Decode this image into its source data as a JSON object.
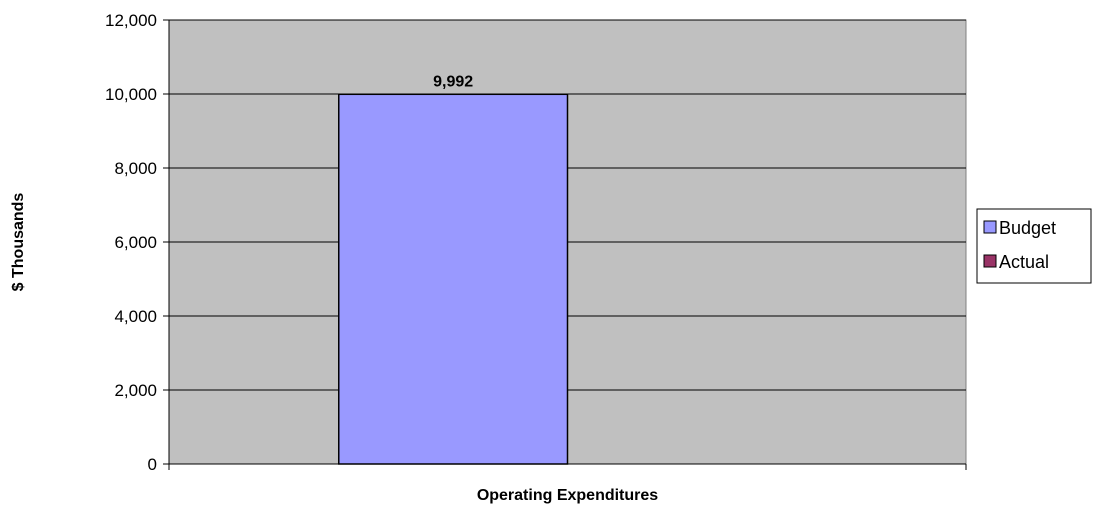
{
  "chart_data": {
    "type": "bar",
    "categories": [
      "Operating Expenditures"
    ],
    "series": [
      {
        "name": "Budget",
        "values": [
          9992
        ],
        "color": "#9999ff"
      },
      {
        "name": "Actual",
        "values": [
          null
        ],
        "color": "#993366"
      }
    ],
    "data_labels": [
      "9,992",
      ""
    ],
    "title": "",
    "xlabel": "Operating Expenditures",
    "ylabel": "$ Thousands",
    "ylim": [
      0,
      12000
    ],
    "yticks": [
      0,
      2000,
      4000,
      6000,
      8000,
      10000,
      12000
    ],
    "ytick_labels": [
      "0",
      "2,000",
      "4,000",
      "6,000",
      "8,000",
      "10,000",
      "12,000"
    ],
    "grid": true,
    "legend": "right",
    "plot_background": "#c0c0c0"
  }
}
